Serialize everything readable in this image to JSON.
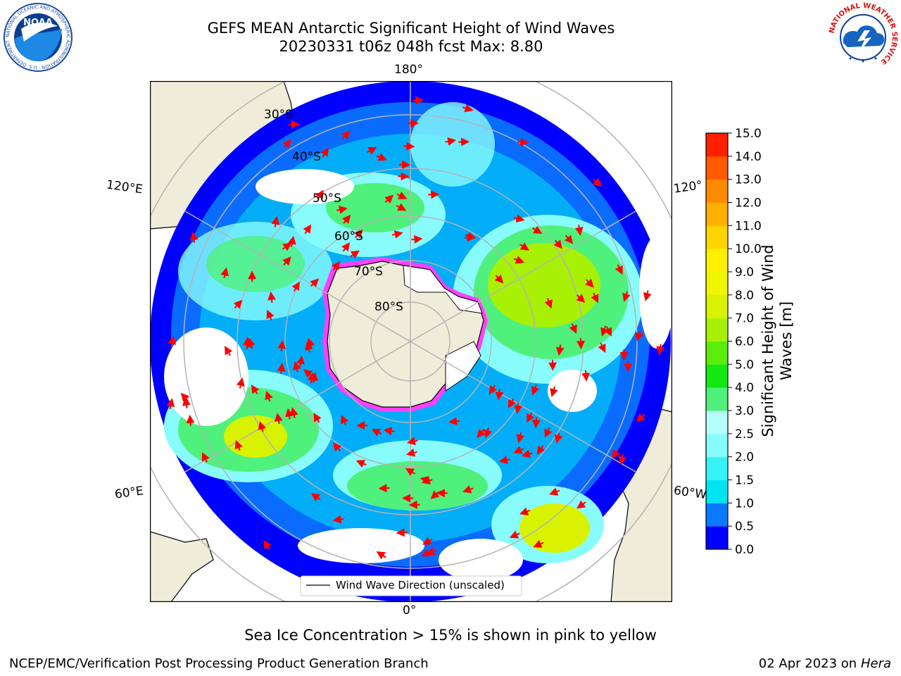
{
  "header": {
    "title_line1": "GEFS MEAN Antarctic Significant Height of Wind Waves",
    "title_line2": "20230331 t06z 048h fcst   Max: 8.80"
  },
  "logos": {
    "noaa": {
      "text": "NOAA",
      "ring_text": "NATIONAL OCEANIC AND ATMOSPHERIC ADMINISTRATION · U.S. DEPARTMENT OF COMMERCE"
    },
    "nws": {
      "ring_text": "NATIONAL WEATHER SERVICE"
    }
  },
  "map": {
    "longitude_labels": {
      "top": "180°",
      "bottom": "0°",
      "upper_left": "120°E",
      "lower_left": "60°E",
      "upper_right": "120°",
      "lower_right": "60°W"
    },
    "latitude_labels": [
      "30°S",
      "40°S",
      "50°S",
      "60°S",
      "70°S",
      "80°S"
    ],
    "legend_label": "Wind Wave Direction (unscaled)"
  },
  "colorbar": {
    "label_line1": "Significant Height of Wind",
    "label_line2": "Waves [m]",
    "ticks": [
      "0.0",
      "0.5",
      "1.0",
      "1.5",
      "2.0",
      "2.5",
      "3.0",
      "4.0",
      "5.0",
      "6.0",
      "7.0",
      "8.0",
      "9.0",
      "10.0",
      "11.0",
      "12.0",
      "13.0",
      "14.0",
      "15.0"
    ],
    "colors": [
      "#0000ff",
      "#0a78ff",
      "#00e4f0",
      "#36f2f6",
      "#88fcfc",
      "#b4fdfb",
      "#50f07c",
      "#12e812",
      "#5ced0c",
      "#a8f005",
      "#d8f200",
      "#f0f500",
      "#fff000",
      "#ffd400",
      "#ffb000",
      "#ff8c00",
      "#ff5a00",
      "#ff2000"
    ]
  },
  "map_colors": {
    "land": "#efedd9",
    "wave_low": "#0000ff",
    "wave_mid": "#88fcfc",
    "wave_high": "#12e812",
    "wave_peak": "#f0f500",
    "ice_edge": "#ff40ff",
    "arrow": "#ff0000"
  },
  "footer": {
    "note": "Sea Ice Concentration > 15% is shown in pink to yellow",
    "credit": "NCEP/EMC/Verification Post Processing Product Generation Branch",
    "date": "02 Apr 2023 on ",
    "machine": "Hera"
  }
}
